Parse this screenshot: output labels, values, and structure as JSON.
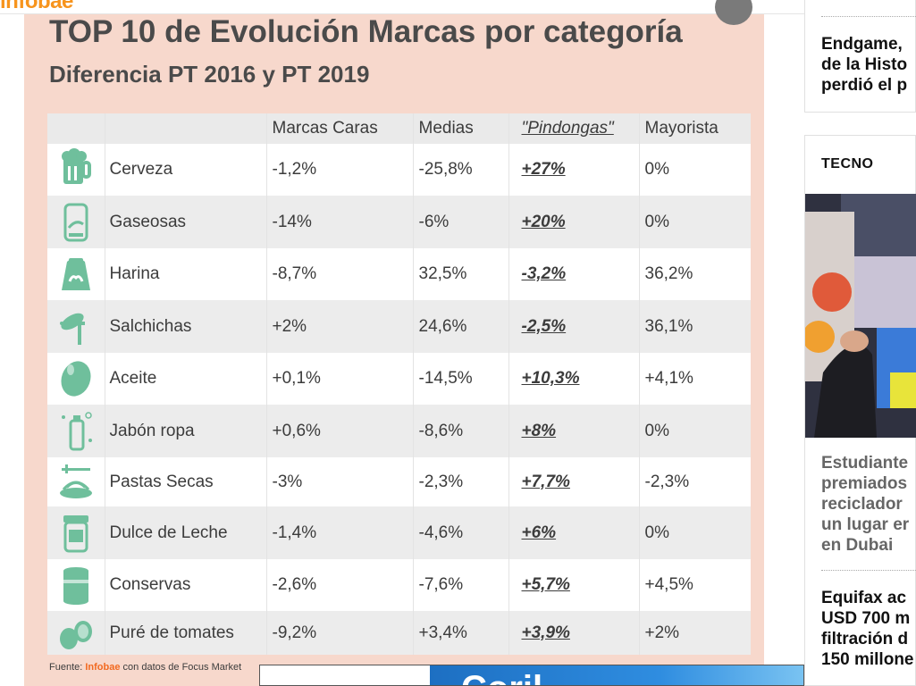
{
  "header": {
    "logo_text": "infobae"
  },
  "infographic": {
    "title": "TOP 10 de Evolución Marcas por categoría",
    "subtitle": "Diferencia PT 2016 y PT 2019",
    "columns": [
      "",
      "",
      "Marcas Caras",
      "Medias",
      "\"Pindongas\"",
      "Mayorista"
    ],
    "rows": [
      {
        "icon": "beer-mug-icon",
        "name": "Cerveza",
        "caras": "-1,2%",
        "medias": "-25,8%",
        "pindongas": "+27%",
        "mayorista": "0%"
      },
      {
        "icon": "soda-can-icon",
        "name": "Gaseosas",
        "caras": "-14%",
        "medias": "-6%",
        "pindongas": "+20%",
        "mayorista": "0%"
      },
      {
        "icon": "flour-sack-icon",
        "name": "Harina",
        "caras": "-8,7%",
        "medias": "32,5%",
        "pindongas": "-3,2%",
        "mayorista": "36,2%"
      },
      {
        "icon": "sausage-fork-icon",
        "name": "Salchichas",
        "caras": "+2%",
        "medias": "24,6%",
        "pindongas": "-2,5%",
        "mayorista": "36,1%"
      },
      {
        "icon": "olive-icon",
        "name": "Aceite",
        "caras": "+0,1%",
        "medias": "-14,5%",
        "pindongas": "+10,3%",
        "mayorista": "+4,1%"
      },
      {
        "icon": "detergent-bottle-icon",
        "name": "Jabón ropa",
        "caras": "+0,6%",
        "medias": "-8,6%",
        "pindongas": "+8%",
        "mayorista": "0%"
      },
      {
        "icon": "pasta-plate-icon",
        "name": "Pastas Secas",
        "caras": "-3%",
        "medias": "-2,3%",
        "pindongas": "+7,7%",
        "mayorista": "-2,3%"
      },
      {
        "icon": "jam-jar-icon",
        "name": "Dulce de Leche",
        "caras": "-1,4%",
        "medias": "-4,6%",
        "pindongas": "+6%",
        "mayorista": "0%"
      },
      {
        "icon": "tin-can-icon",
        "name": "Conservas",
        "caras": "-2,6%",
        "medias": "-7,6%",
        "pindongas": "+5,7%",
        "mayorista": "+4,5%"
      },
      {
        "icon": "stacked-cans-icon",
        "name": "Puré de tomates",
        "caras": "-9,2%",
        "medias": "+3,4%",
        "pindongas": "+3,9%",
        "mayorista": "+2%"
      }
    ],
    "source_prefix": "Fuente: ",
    "source_brand": "Infobae",
    "source_suffix": " con datos de Focus Market",
    "icon_color": "#6fbf9c"
  },
  "ad": {
    "text": "Coril"
  },
  "sidebar": {
    "top_headline": [
      "Endgame,",
      "de la Histo",
      "perdió el p"
    ],
    "section_label": "TECNO",
    "headline_1": [
      "Estudiante",
      "premiados",
      "reciclador",
      "un lugar er",
      "en Dubai"
    ],
    "headline_2": [
      "Equifax ac",
      "USD 700 m",
      "filtración d",
      "150 millone"
    ]
  }
}
